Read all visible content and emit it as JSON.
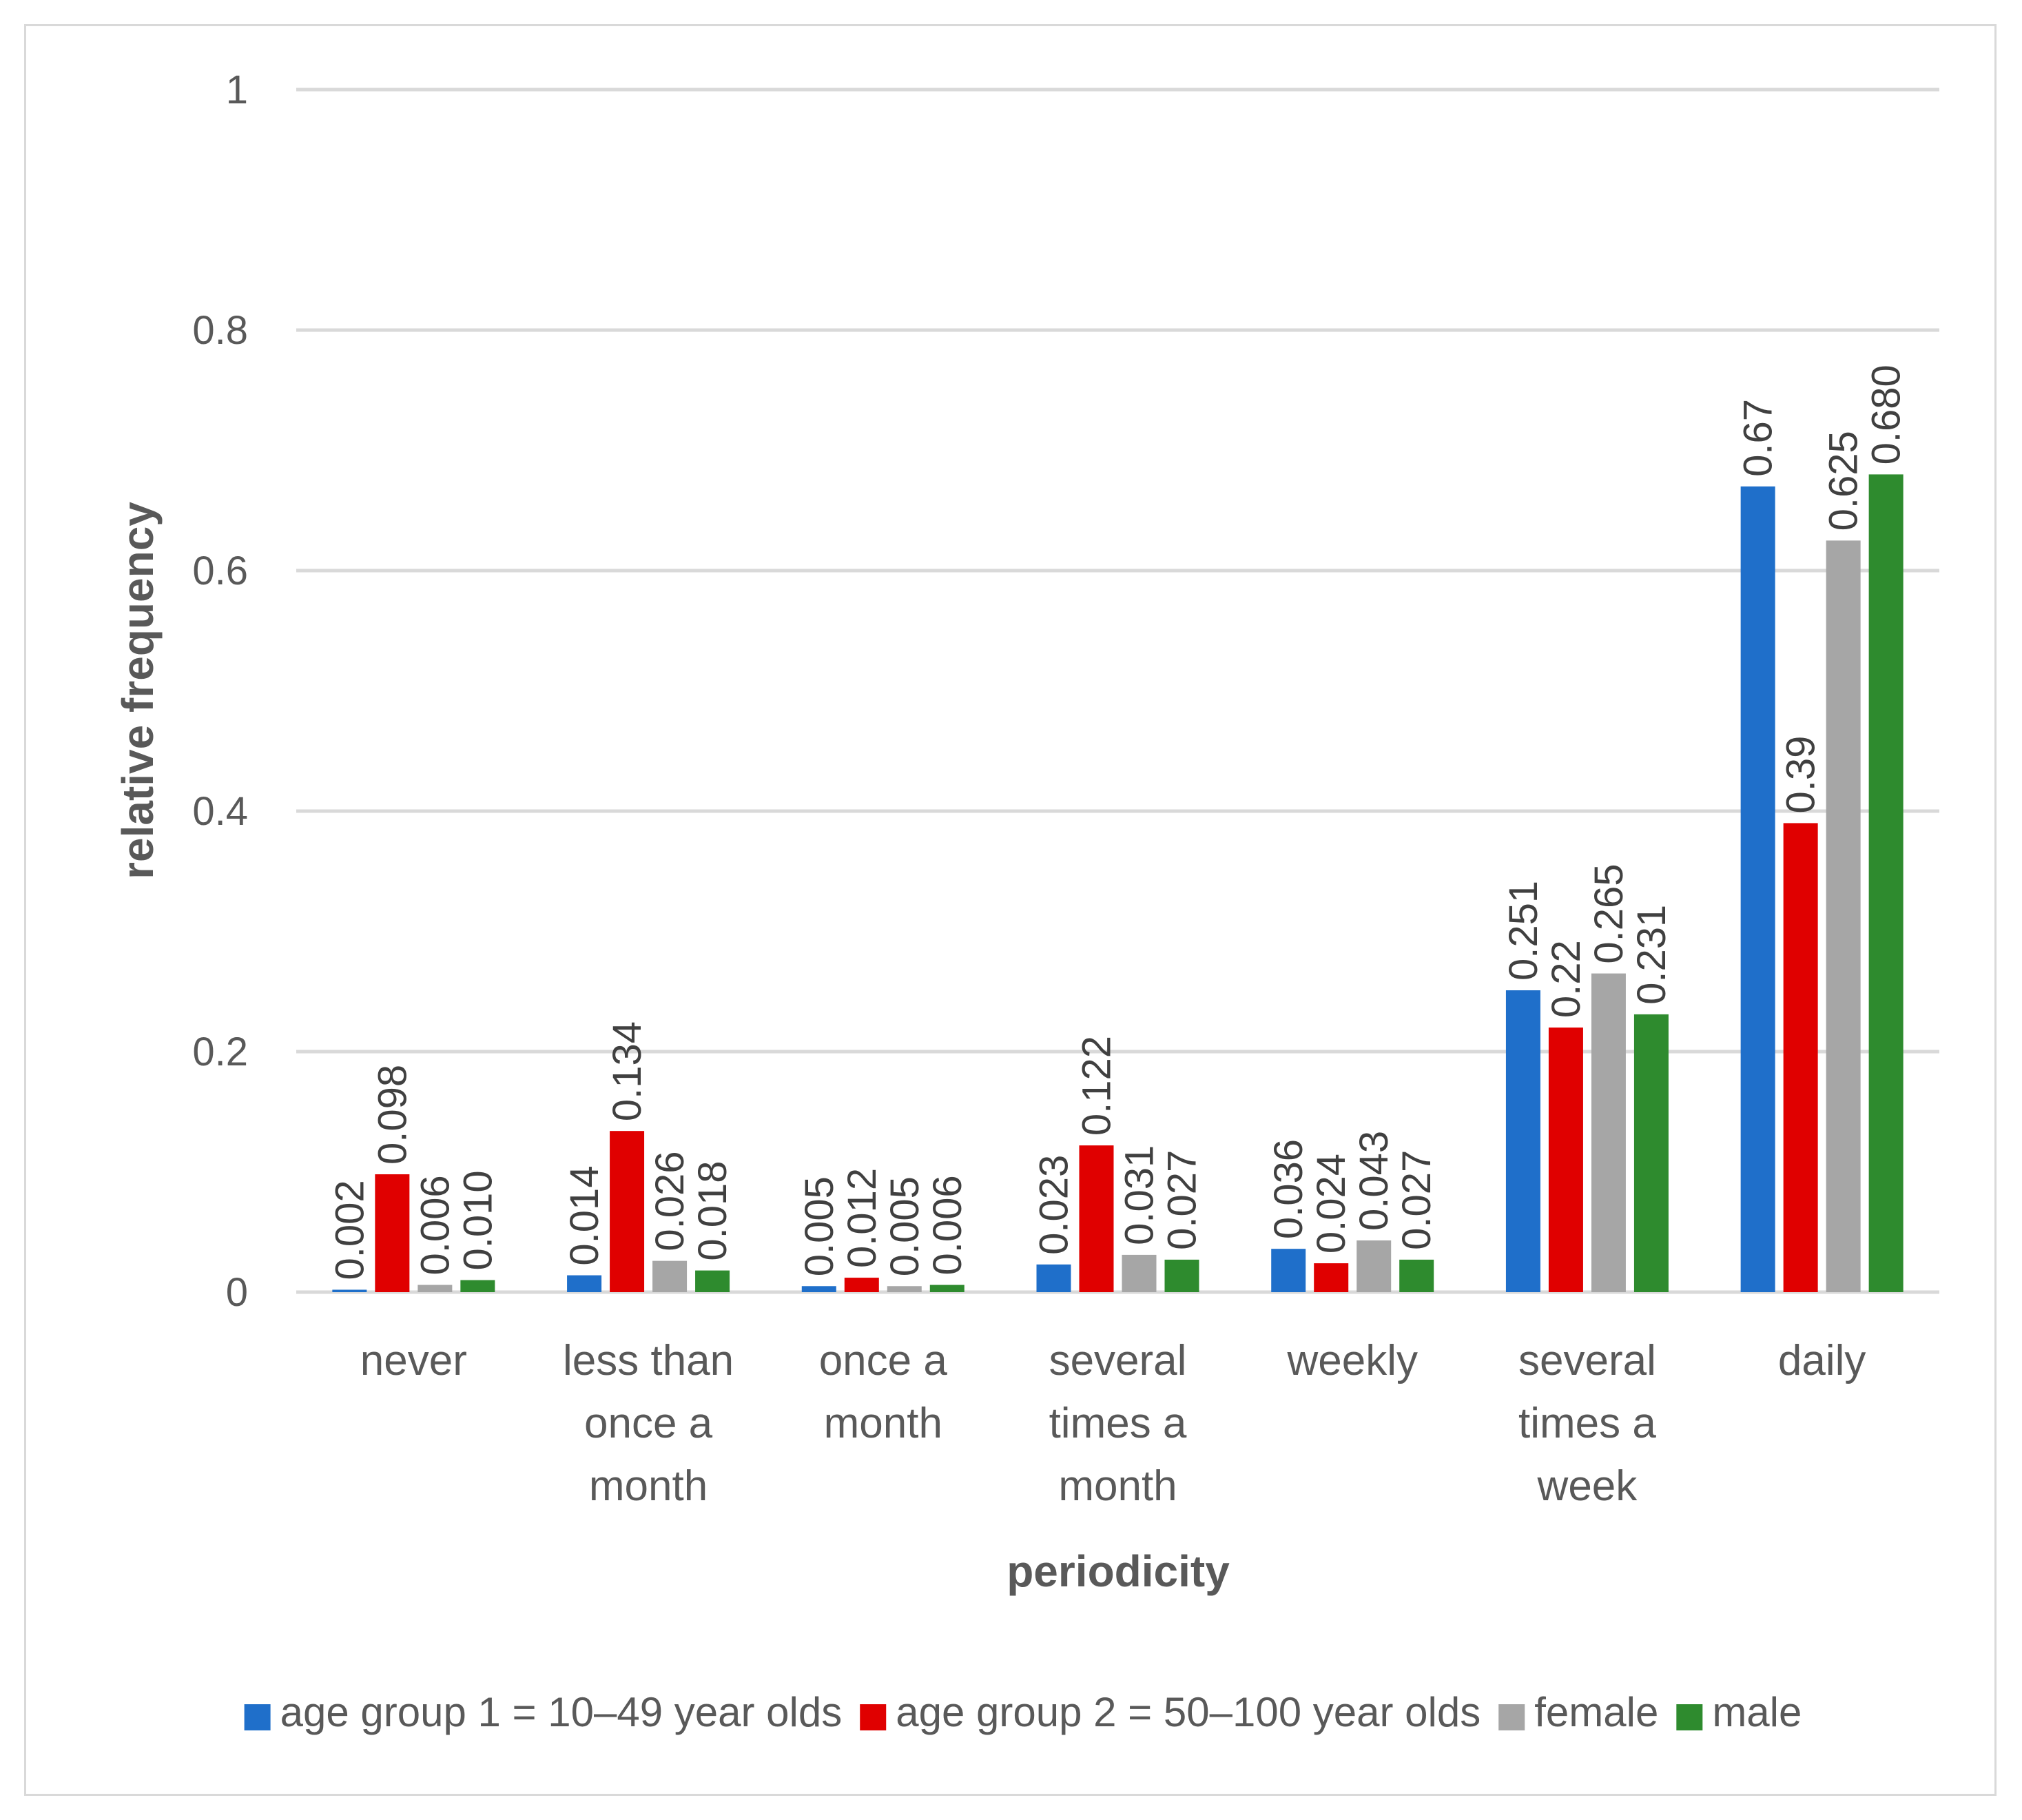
{
  "chart_data": {
    "type": "bar",
    "title": "",
    "xlabel": "periodicity",
    "ylabel": "relative frequency",
    "ylim": [
      0,
      1
    ],
    "yticks": [
      0,
      0.2,
      0.4,
      0.6,
      0.8,
      1
    ],
    "ytick_labels": [
      "0",
      "0.2",
      "0.4",
      "0.6",
      "0.8",
      "1"
    ],
    "grid": true,
    "legend_position": "bottom",
    "categories": [
      [
        "never"
      ],
      [
        "less than",
        "once a",
        "month"
      ],
      [
        "once a",
        "month"
      ],
      [
        "several",
        "times a",
        "month"
      ],
      [
        "weekly"
      ],
      [
        "several",
        "times a",
        "week"
      ],
      [
        "daily"
      ]
    ],
    "series": [
      {
        "name": "age group 1 = 10–49 year olds",
        "color": "#1f6fca",
        "values": [
          0.002,
          0.014,
          0.005,
          0.023,
          0.036,
          0.251,
          0.67
        ],
        "labels": [
          "0.002",
          "0.014",
          "0.005",
          "0.023",
          "0.036",
          "0.251",
          "0.67"
        ]
      },
      {
        "name": "age group 2 = 50–100 year olds",
        "color": "#e00000",
        "values": [
          0.098,
          0.134,
          0.012,
          0.122,
          0.024,
          0.22,
          0.39
        ],
        "labels": [
          "0.098",
          "0.134",
          "0.012",
          "0.122",
          "0.024",
          "0.22",
          "0.39"
        ]
      },
      {
        "name": "female",
        "color": "#a6a6a6",
        "values": [
          0.006,
          0.026,
          0.005,
          0.031,
          0.043,
          0.265,
          0.625
        ],
        "labels": [
          "0.006",
          "0.026",
          "0.005",
          "0.031",
          "0.043",
          "0.265",
          "0.625"
        ]
      },
      {
        "name": "male",
        "color": "#2e8b2e",
        "values": [
          0.01,
          0.018,
          0.006,
          0.027,
          0.027,
          0.231,
          0.68
        ],
        "labels": [
          "0.010",
          "0.018",
          "0.006",
          "0.027",
          "0.027",
          "0.231",
          "0.680"
        ]
      }
    ]
  }
}
